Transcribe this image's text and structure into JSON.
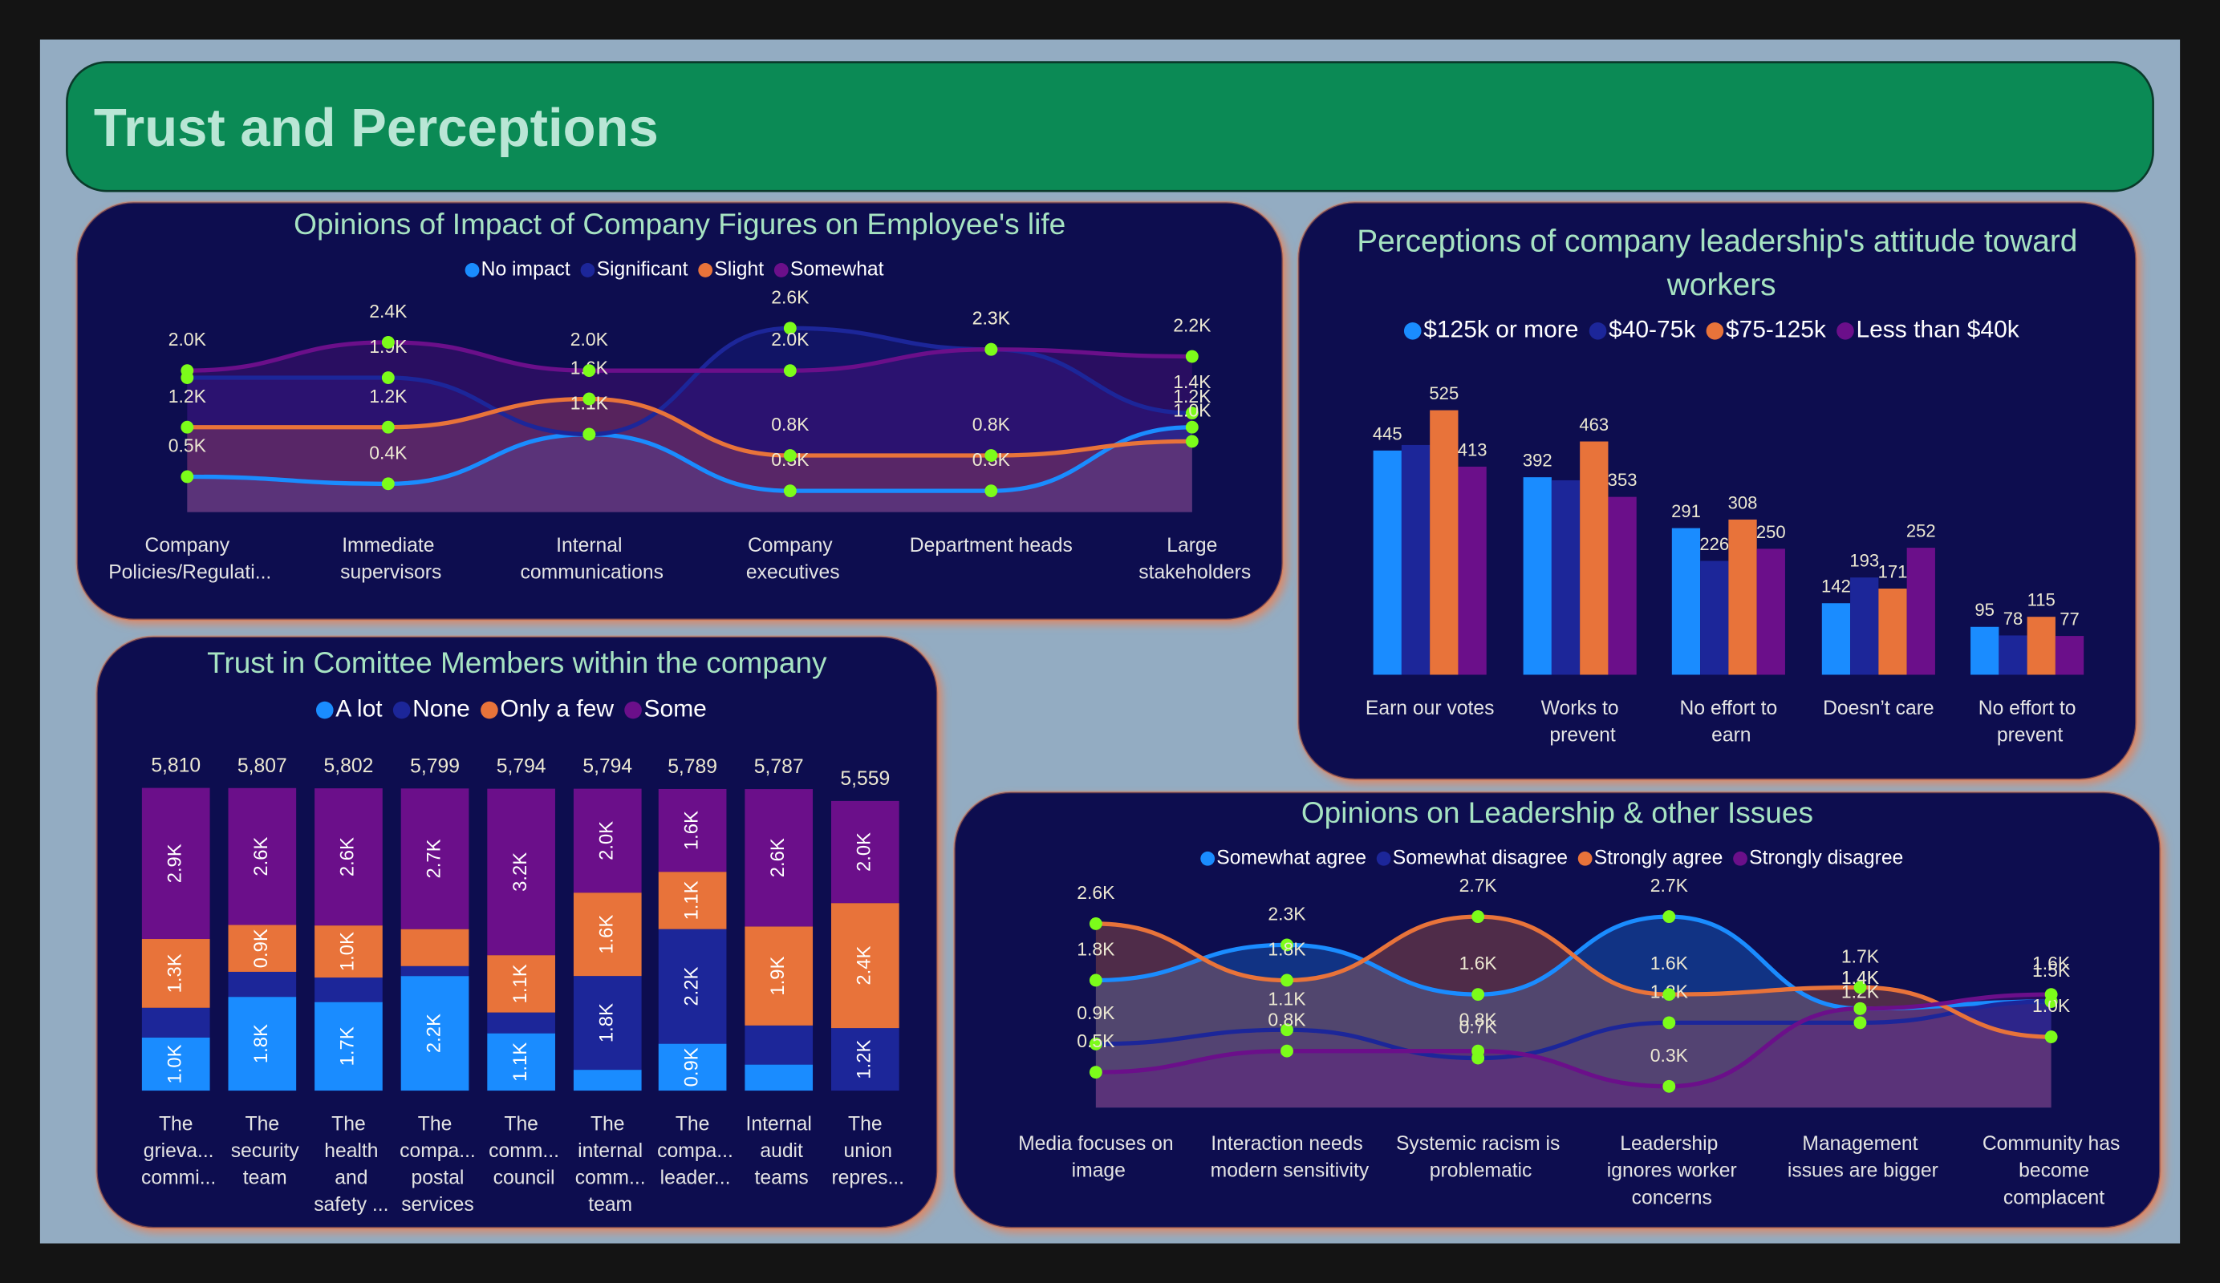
{
  "title": "Trust and Perceptions",
  "chart_data": [
    {
      "type": "area",
      "title": "Opinions of Impact of Company Figures on Employee's life",
      "categories": [
        "Company Policies/Regulati...",
        "Immediate supervisors",
        "Internal communications",
        "Company executives",
        "Department heads",
        "Large stakeholders"
      ],
      "series": [
        {
          "name": "No impact",
          "color": "#1a8cff",
          "values": [
            500,
            400,
            1100,
            300,
            300,
            1200
          ],
          "value_labels": [
            "0.5K",
            "0.4K",
            "1.1K",
            "0.3K",
            "0.3K",
            "1.2K"
          ]
        },
        {
          "name": "Significant",
          "color": "#1c2699",
          "values": [
            1900,
            1900,
            1100,
            2600,
            2300,
            1400
          ],
          "value_labels": [
            null,
            "1.9K",
            "1.1K",
            "2.6K",
            "2.3K",
            "1.4K"
          ]
        },
        {
          "name": "Slight",
          "color": "#e8733a",
          "values": [
            1200,
            1200,
            1600,
            800,
            800,
            1000
          ],
          "value_labels": [
            "1.2K",
            "1.2K",
            "1.6K",
            "0.8K",
            "0.8K",
            "1.0K"
          ]
        },
        {
          "name": "Somewhat",
          "color": "#6b0f8a",
          "values": [
            2000,
            2400,
            2000,
            2000,
            2300,
            2200
          ],
          "value_labels": [
            "2.0K",
            "2.4K",
            "2.0K",
            "2.0K",
            "2.3K",
            "2.2K"
          ]
        }
      ]
    },
    {
      "type": "bar",
      "title": "Perceptions of company leadership's attitude toward workers",
      "categories": [
        "Earn our votes",
        "Works to prevent",
        "No effort to earn",
        "Doesn’t care",
        "No effort to prevent"
      ],
      "series": [
        {
          "name": "$125k or more",
          "color": "#1a8cff",
          "values": [
            445,
            392,
            291,
            142,
            95
          ]
        },
        {
          "name": "$40-75k",
          "color": "#1c2699",
          "values": [
            456,
            386,
            226,
            193,
            78
          ],
          "value_labels": [
            null,
            null,
            "226",
            "193",
            "78"
          ]
        },
        {
          "name": "$75-125k",
          "color": "#e8733a",
          "values": [
            525,
            463,
            308,
            171,
            115
          ]
        },
        {
          "name": "Less than $40k",
          "color": "#6b0f8a",
          "values": [
            413,
            353,
            250,
            252,
            77
          ]
        }
      ]
    },
    {
      "type": "stacked_bar",
      "title": "Trust in Comittee Members within the company",
      "categories": [
        "The grieva... commi...",
        "The security team",
        "The health and safety ...",
        "The compa... postal services",
        "The comm... council",
        "The internal comm... team",
        "The compa... leader...",
        "Internal audit teams",
        "The union repres..."
      ],
      "totals": [
        5810,
        5807,
        5802,
        5799,
        5794,
        5794,
        5789,
        5787,
        5559
      ],
      "total_labels": [
        "5,810",
        "5,807",
        "5,802",
        "5,799",
        "5,794",
        "5,794",
        "5,789",
        "5,787",
        "5,559"
      ],
      "series": [
        {
          "name": "A lot",
          "color": "#1a8cff",
          "values": [
            1020,
            1800,
            1700,
            2200,
            1100,
            400,
            900,
            500,
            0
          ],
          "value_labels": [
            "1.0K",
            "1.8K",
            "1.7K",
            "2.2K",
            "1.1K",
            null,
            "0.9K",
            null,
            null
          ]
        },
        {
          "name": "None",
          "color": "#1c2699",
          "values": [
            570,
            480,
            470,
            190,
            400,
            1800,
            2200,
            750,
            1200
          ],
          "value_labels": [
            null,
            null,
            null,
            null,
            null,
            "1.8K",
            "2.2K",
            null,
            "1.2K"
          ]
        },
        {
          "name": "Only a few",
          "color": "#e8733a",
          "values": [
            1320,
            900,
            1000,
            710,
            1100,
            1600,
            1100,
            1900,
            2400
          ],
          "value_labels": [
            "1.3K",
            "0.9K",
            "1.0K",
            null,
            "1.1K",
            "1.6K",
            "1.1K",
            "1.9K",
            "2.4K"
          ]
        },
        {
          "name": "Some",
          "color": "#6b0f8a",
          "values": [
            2900,
            2627,
            2632,
            2699,
            3194,
            1994,
            1589,
            2637,
            1959
          ],
          "value_labels": [
            "2.9K",
            "2.6K",
            "2.6K",
            "2.7K",
            "3.2K",
            "2.0K",
            "1.6K",
            "2.6K",
            "2.0K"
          ]
        }
      ]
    },
    {
      "type": "area",
      "title": "Opinions on Leadership & other Issues",
      "categories": [
        "Media focuses on image",
        "Interaction needs modern sensitivity",
        "Systemic racism is problematic",
        "Leadership ignores worker concerns",
        "Management issues are bigger",
        "Community has become complacent"
      ],
      "series": [
        {
          "name": "Somewhat agree",
          "color": "#1a8cff",
          "values": [
            1800,
            2300,
            1600,
            2700,
            1400,
            1500
          ],
          "value_labels": [
            "1.8K",
            "2.3K",
            "1.6K",
            "2.7K",
            "1.4K",
            "1.5K"
          ]
        },
        {
          "name": "Somewhat disagree",
          "color": "#1c2699",
          "values": [
            900,
            1100,
            700,
            1200,
            1200,
            1500
          ],
          "value_labels": [
            "0.9K",
            "1.1K",
            "0.7K",
            "1.2K",
            "1.2K",
            null
          ]
        },
        {
          "name": "Strongly agree",
          "color": "#e8733a",
          "values": [
            2600,
            1800,
            2700,
            1600,
            1700,
            1000
          ],
          "value_labels": [
            "2.6K",
            "1.8K",
            "2.7K",
            "1.6K",
            "1.7K",
            "1.0K"
          ]
        },
        {
          "name": "Strongly disagree",
          "color": "#6b0f8a",
          "values": [
            500,
            800,
            800,
            300,
            1400,
            1600
          ],
          "value_labels": [
            "0.5K",
            "0.8K",
            "0.8K",
            "0.3K",
            "1.4K",
            "1.6K"
          ]
        }
      ]
    }
  ]
}
